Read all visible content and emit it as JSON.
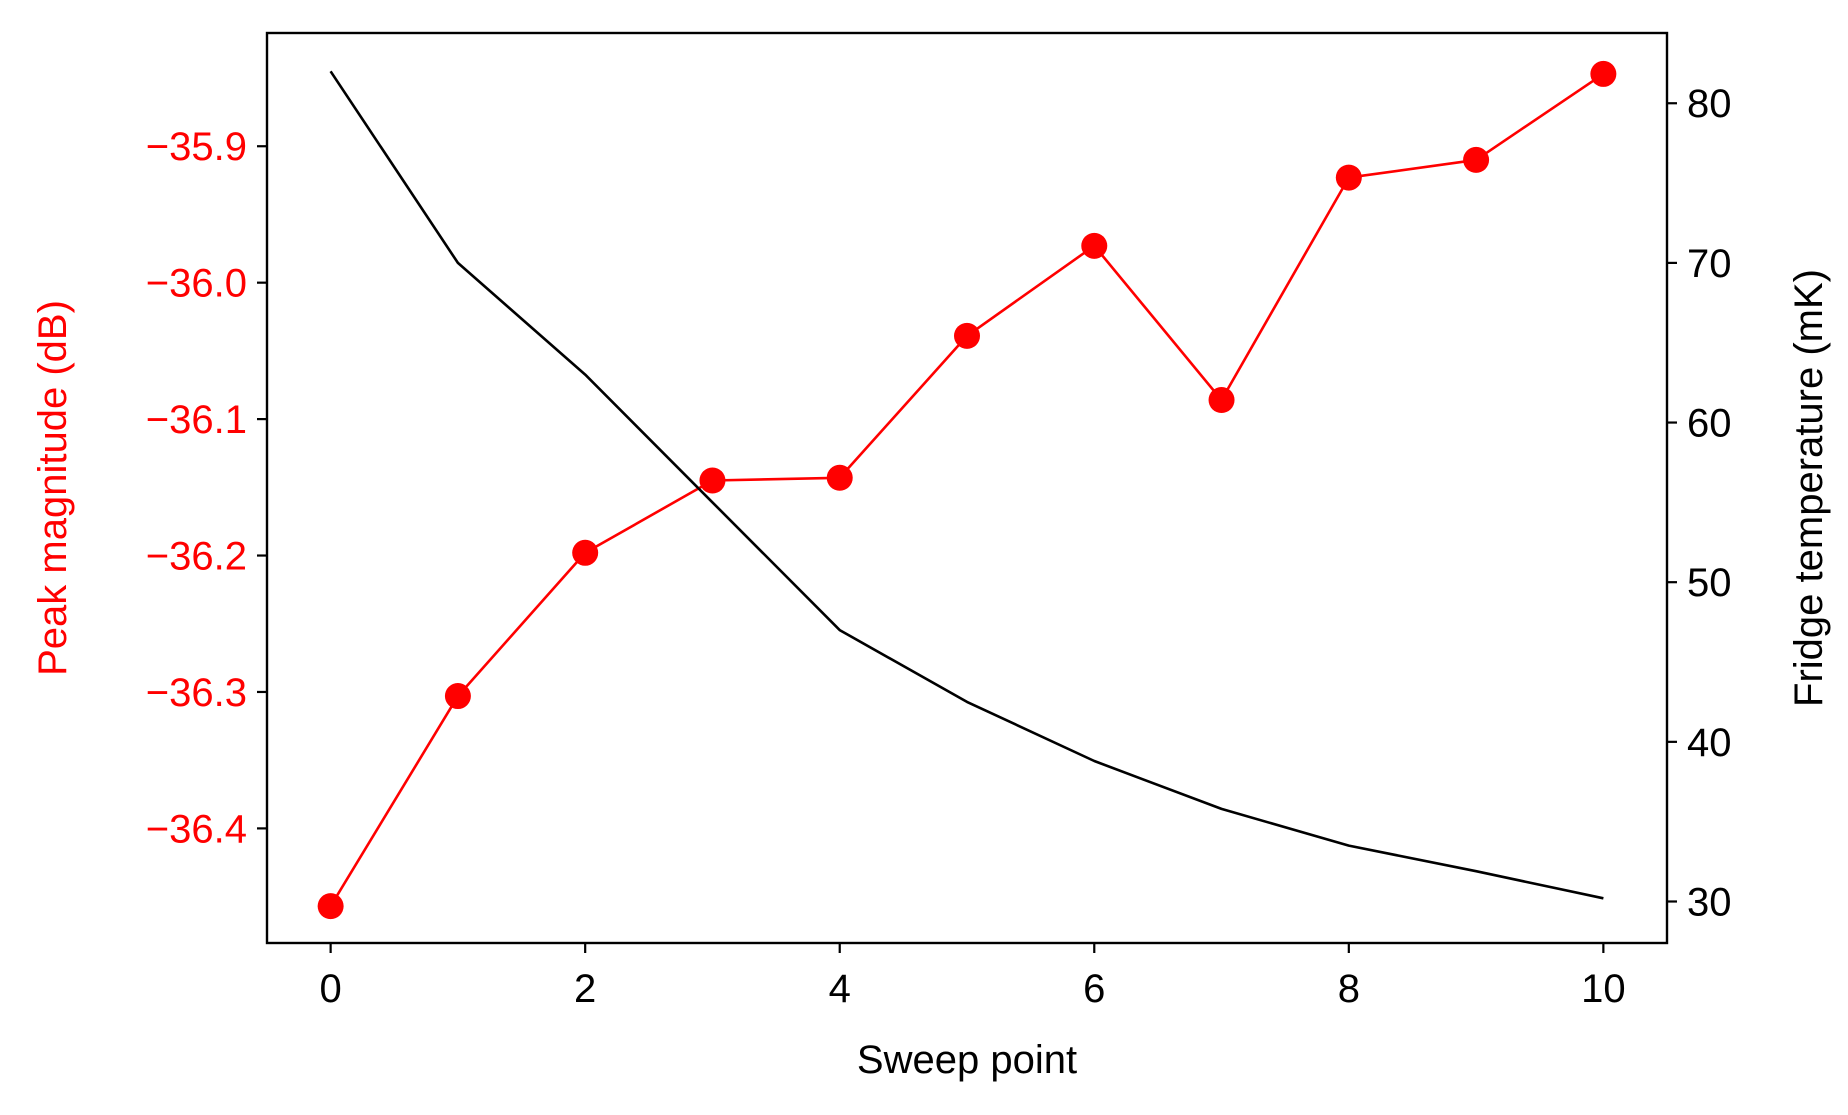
{
  "chart_data": {
    "type": "line",
    "x_label": "Sweep point",
    "y_left_label": "Peak magnitude (dB)",
    "y_right_label": "Fridge temperature (mK)",
    "x": [
      0,
      1,
      2,
      3,
      4,
      5,
      6,
      7,
      8,
      9,
      10
    ],
    "x_ticks": [
      0,
      2,
      4,
      6,
      8,
      10
    ],
    "x_tick_labels": [
      "0",
      "2",
      "4",
      "6",
      "8",
      "10"
    ],
    "x_range": [
      -0.5,
      10.5
    ],
    "y_left_ticks": [
      -35.9,
      -36.0,
      -36.1,
      -36.2,
      -36.3,
      -36.4
    ],
    "y_left_tick_labels": [
      "−35.9",
      "−36.0",
      "−36.1",
      "−36.2",
      "−36.3",
      "−36.4"
    ],
    "y_left_range": [
      -36.484,
      -35.817
    ],
    "y_right_ticks": [
      30,
      40,
      50,
      60,
      70,
      80
    ],
    "y_right_tick_labels": [
      "30",
      "40",
      "50",
      "60",
      "70",
      "80"
    ],
    "y_right_range": [
      27.4,
      84.4
    ],
    "grid": false,
    "series": [
      {
        "axis": "left",
        "color": "#ff0000",
        "marker": "circle",
        "values": [
          -36.457,
          -36.303,
          -36.198,
          -36.145,
          -36.143,
          -36.039,
          -35.973,
          -36.086,
          -35.923,
          -35.91,
          -35.847
        ]
      },
      {
        "axis": "right",
        "color": "#000000",
        "marker": "none",
        "values": [
          82.0,
          70.0,
          63.0,
          55.0,
          47.0,
          42.5,
          38.8,
          35.8,
          33.5,
          31.9,
          30.2
        ]
      }
    ]
  }
}
